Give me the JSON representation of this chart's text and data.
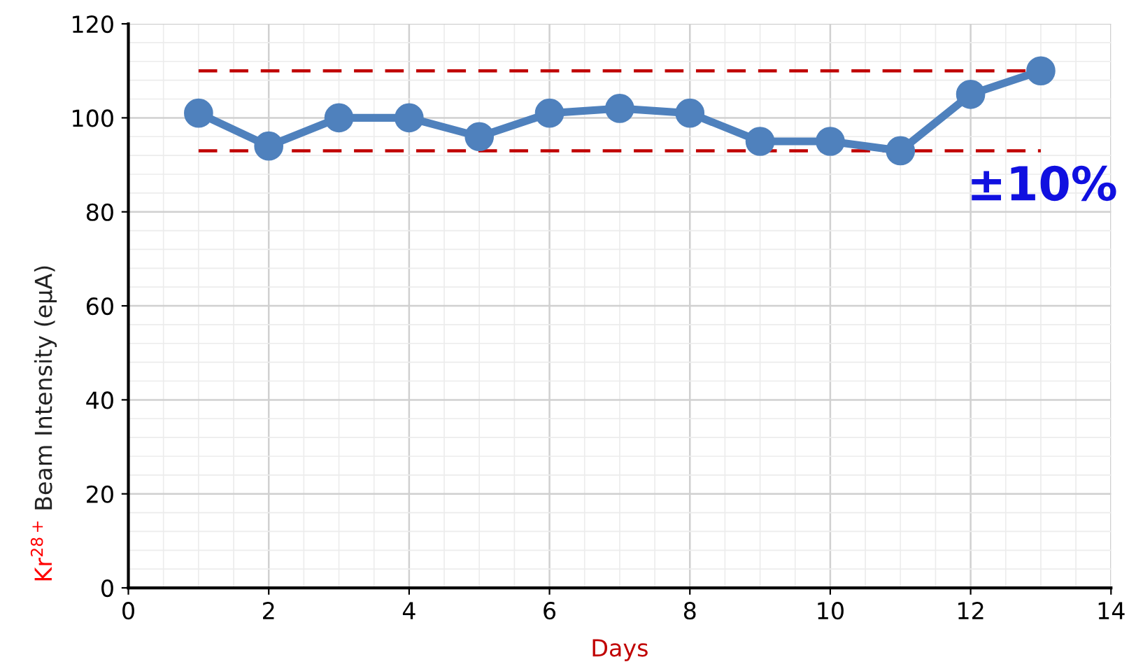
{
  "chart_data": {
    "type": "line",
    "xlabel": "Days",
    "ylabel": "Kr$^{28+}$ Beam Intensity (eμA)",
    "x": [
      1,
      2,
      3,
      4,
      5,
      6,
      7,
      8,
      9,
      10,
      11,
      12,
      13
    ],
    "series": [
      {
        "color": "#4f81bd",
        "values": [
          101,
          94,
          100,
          100,
          96,
          101,
          102,
          101,
          95,
          95,
          93,
          105,
          110
        ]
      }
    ],
    "marker": "circle",
    "line_style": "solid",
    "xlim": [
      0,
      14
    ],
    "xticks": [
      0,
      2,
      4,
      6,
      8,
      10,
      12,
      14
    ],
    "ylim": [
      0,
      120
    ],
    "yticks": [
      0,
      20,
      40,
      60,
      80,
      100,
      120
    ],
    "grid": true,
    "ref_lines": [
      {
        "axis": "y",
        "value": 110,
        "color": "#c00000",
        "line_style": "dashed"
      },
      {
        "axis": "y",
        "value": 93,
        "color": "#c00000",
        "line_style": "dashed"
      }
    ],
    "annotations": [
      "±10%"
    ]
  }
}
